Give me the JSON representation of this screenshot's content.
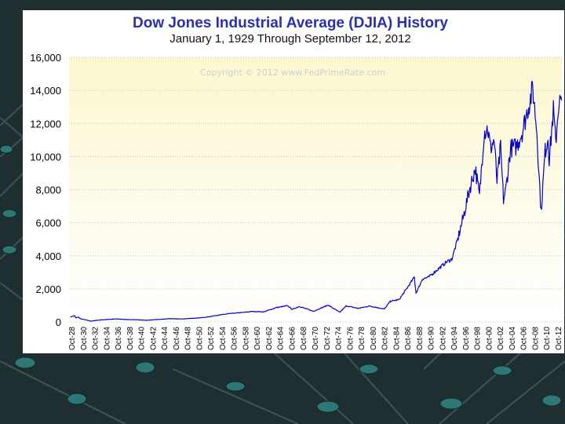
{
  "chart_data": {
    "type": "line",
    "title": "Dow Jones Industrial Average (DJIA) History",
    "subtitle": "January 1, 1929  Through  September 12, 2012",
    "watermark": "Copyright © 2012 www.FedPrimeRate.com",
    "xlabel": "",
    "ylabel": "",
    "ylim": [
      0,
      16000
    ],
    "xlim": [
      1928.75,
      2012.75
    ],
    "grid": true,
    "line_color": "#0000c8",
    "yticks": [
      {
        "value": 0,
        "label": "0"
      },
      {
        "value": 2000,
        "label": "2,000"
      },
      {
        "value": 4000,
        "label": "4,000"
      },
      {
        "value": 6000,
        "label": "6,000"
      },
      {
        "value": 8000,
        "label": "8,000"
      },
      {
        "value": 10000,
        "label": "10,000"
      },
      {
        "value": 12000,
        "label": "12,000"
      },
      {
        "value": 14000,
        "label": "14,000"
      },
      {
        "value": 16000,
        "label": "16,000"
      }
    ],
    "xticks": [
      "Oct-28",
      "Oct-30",
      "Oct-32",
      "Oct-34",
      "Oct-36",
      "Oct-38",
      "Oct-40",
      "Oct-42",
      "Oct-44",
      "Oct-46",
      "Oct-48",
      "Oct-50",
      "Oct-52",
      "Oct-54",
      "Oct-56",
      "Oct-58",
      "Oct-60",
      "Oct-62",
      "Oct-64",
      "Oct-66",
      "Oct-68",
      "Oct-70",
      "Oct-72",
      "Oct-74",
      "Oct-76",
      "Oct-78",
      "Oct-80",
      "Oct-82",
      "Oct-84",
      "Oct-86",
      "Oct-88",
      "Oct-90",
      "Oct-92",
      "Oct-94",
      "Oct-96",
      "Oct-98",
      "Oct-00",
      "Oct-02",
      "Oct-04",
      "Oct-06",
      "Oct-08",
      "Oct-10",
      "Oct-12"
    ],
    "series": [
      {
        "name": "DJIA",
        "points": [
          [
            1929.0,
            300
          ],
          [
            1929.7,
            380
          ],
          [
            1929.9,
            240
          ],
          [
            1930.3,
            290
          ],
          [
            1930.8,
            180
          ],
          [
            1931.5,
            130
          ],
          [
            1932.5,
            45
          ],
          [
            1933.5,
            100
          ],
          [
            1935,
            140
          ],
          [
            1937,
            185
          ],
          [
            1938.5,
            140
          ],
          [
            1940,
            135
          ],
          [
            1942,
            100
          ],
          [
            1944,
            150
          ],
          [
            1946,
            195
          ],
          [
            1948,
            180
          ],
          [
            1950,
            220
          ],
          [
            1952,
            280
          ],
          [
            1954,
            400
          ],
          [
            1956,
            500
          ],
          [
            1958,
            560
          ],
          [
            1960,
            630
          ],
          [
            1962,
            610
          ],
          [
            1964,
            860
          ],
          [
            1966,
            980
          ],
          [
            1966.8,
            760
          ],
          [
            1968,
            940
          ],
          [
            1970.4,
            640
          ],
          [
            1972.9,
            1020
          ],
          [
            1974.9,
            580
          ],
          [
            1976,
            970
          ],
          [
            1978,
            820
          ],
          [
            1980,
            960
          ],
          [
            1982.5,
            780
          ],
          [
            1983.5,
            1250
          ],
          [
            1985,
            1350
          ],
          [
            1986,
            1850
          ],
          [
            1987.6,
            2700
          ],
          [
            1987.9,
            1740
          ],
          [
            1989,
            2600
          ],
          [
            1990,
            2700
          ],
          [
            1991,
            3000
          ],
          [
            1993,
            3600
          ],
          [
            1994,
            3800
          ],
          [
            1995,
            5000
          ],
          [
            1996,
            6400
          ],
          [
            1997,
            8000
          ],
          [
            1998,
            9300
          ],
          [
            1998.7,
            7600
          ],
          [
            1999.5,
            11500
          ],
          [
            2000.1,
            11700
          ],
          [
            2000.6,
            10500
          ],
          [
            2001.2,
            11000
          ],
          [
            2001.7,
            8500
          ],
          [
            2002.3,
            10500
          ],
          [
            2002.8,
            7400
          ],
          [
            2003.2,
            8000
          ],
          [
            2004,
            10500
          ],
          [
            2005,
            10600
          ],
          [
            2006,
            11500
          ],
          [
            2007.8,
            14100
          ],
          [
            2008.5,
            11500
          ],
          [
            2009.2,
            6600
          ],
          [
            2009.9,
            10300
          ],
          [
            2010.4,
            11200
          ],
          [
            2010.6,
            9800
          ],
          [
            2011.3,
            12800
          ],
          [
            2011.7,
            10800
          ],
          [
            2012.2,
            13200
          ],
          [
            2012.7,
            13400
          ]
        ]
      }
    ]
  }
}
